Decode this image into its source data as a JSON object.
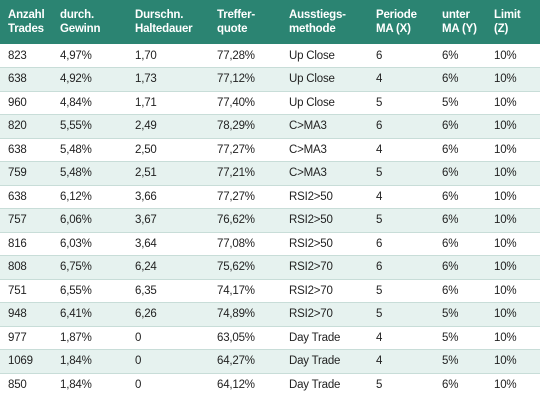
{
  "table": {
    "headers": [
      {
        "line1": "Anzahl",
        "line2": "Trades"
      },
      {
        "line1": "durch.",
        "line2": "Gewinn"
      },
      {
        "line1": "Durschn.",
        "line2": "Haltedauer"
      },
      {
        "line1": "Treffer-",
        "line2": "quote"
      },
      {
        "line1": "Ausstiegs-",
        "line2": "methode"
      },
      {
        "line1": "Periode",
        "line2": "MA (X)"
      },
      {
        "line1": "unter",
        "line2": "MA (Y)"
      },
      {
        "line1": "Limit",
        "line2": "(Z)"
      }
    ],
    "rows": [
      [
        "823",
        "4,97%",
        "1,70",
        "77,28%",
        "Up Close",
        "6",
        "6%",
        "10%"
      ],
      [
        "638",
        "4,92%",
        "1,73",
        "77,12%",
        "Up Close",
        "4",
        "6%",
        "10%"
      ],
      [
        "960",
        "4,84%",
        "1,71",
        "77,40%",
        "Up Close",
        "5",
        "5%",
        "10%"
      ],
      [
        "820",
        "5,55%",
        "2,49",
        "78,29%",
        "C>MA3",
        "6",
        "6%",
        "10%"
      ],
      [
        "638",
        "5,48%",
        "2,50",
        "77,27%",
        "C>MA3",
        "4",
        "6%",
        "10%"
      ],
      [
        "759",
        "5,48%",
        "2,51",
        "77,21%",
        "C>MA3",
        "5",
        "6%",
        "10%"
      ],
      [
        "638",
        "6,12%",
        "3,66",
        "77,27%",
        "RSI2>50",
        "4",
        "6%",
        "10%"
      ],
      [
        "757",
        "6,06%",
        "3,67",
        "76,62%",
        "RSI2>50",
        "5",
        "6%",
        "10%"
      ],
      [
        "816",
        "6,03%",
        "3,64",
        "77,08%",
        "RSI2>50",
        "6",
        "6%",
        "10%"
      ],
      [
        "808",
        "6,75%",
        "6,24",
        "75,62%",
        "RSI2>70",
        "6",
        "6%",
        "10%"
      ],
      [
        "751",
        "6,55%",
        "6,35",
        "74,17%",
        "RSI2>70",
        "5",
        "6%",
        "10%"
      ],
      [
        "948",
        "6,41%",
        "6,26",
        "74,89%",
        "RSI2>70",
        "5",
        "5%",
        "10%"
      ],
      [
        "977",
        "1,87%",
        "0",
        "63,05%",
        "Day Trade",
        "4",
        "5%",
        "10%"
      ],
      [
        "1069",
        "1,84%",
        "0",
        "64,27%",
        "Day Trade",
        "4",
        "5%",
        "10%"
      ],
      [
        "850",
        "1,84%",
        "0",
        "64,12%",
        "Day Trade",
        "5",
        "6%",
        "10%"
      ]
    ]
  },
  "colors": {
    "header_bg": "#2b8472",
    "header_text": "#ffffff",
    "row_alt_bg": "#e6f2ef",
    "row_bg": "#ffffff"
  }
}
